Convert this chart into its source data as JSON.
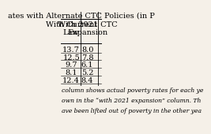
{
  "title_line1": "ates with Alternate CTC Policies (in P",
  "col1_header": "With Current\nLaw",
  "col2_header": "With 2021 CTC\nExpansion",
  "col1_values": [
    "13.7",
    "12.5",
    "9.7",
    "8.1",
    "12.4"
  ],
  "col2_values": [
    "8.0",
    "7.8",
    "6.1",
    "5.2",
    "8.4"
  ],
  "footnote_lines": [
    "column shows actual poverty rates for each ye",
    "own in the “with 2021 expansion” column. Th",
    "ave been lifted out of poverty in the other yea"
  ],
  "background_color": "#f5f0e8",
  "title_fontsize": 7,
  "cell_fontsize": 7,
  "footnote_fontsize": 5.5
}
